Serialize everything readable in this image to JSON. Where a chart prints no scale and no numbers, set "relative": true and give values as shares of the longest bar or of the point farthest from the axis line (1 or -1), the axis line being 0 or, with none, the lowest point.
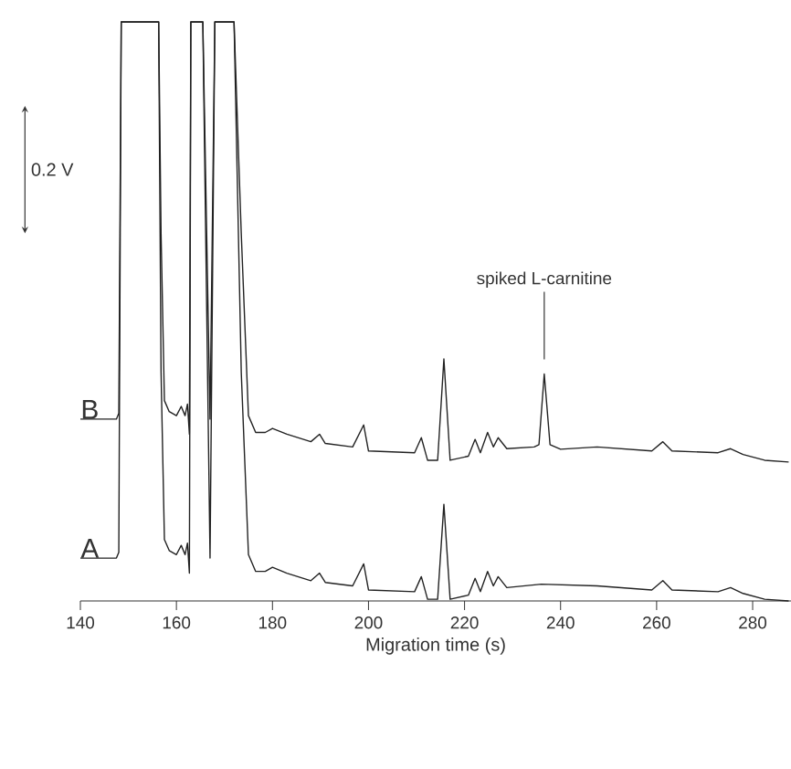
{
  "chart_data": {
    "type": "line",
    "relative": true,
    "xlabel": "Migration time (s)",
    "xlim": [
      140,
      288
    ],
    "xticks": [
      140,
      160,
      180,
      200,
      220,
      240,
      260,
      280
    ],
    "series": [
      {
        "name": "A",
        "color": "#222222",
        "x": [
          140,
          147.5,
          148,
          148.5,
          156.3,
          156.8,
          157.5,
          158.5,
          160,
          161,
          161.8,
          162.3,
          162.7,
          163,
          165.5,
          167,
          168,
          172,
          173.5,
          175,
          176.5,
          178.5,
          180,
          183,
          188,
          189.8,
          191,
          196.7,
          199,
          200,
          209.6,
          211,
          212.3,
          214.4,
          215.7,
          217,
          220.8,
          222.2,
          223.3,
          224.8,
          226,
          227,
          228.8,
          236,
          247.6,
          259,
          261.3,
          263.2,
          272.8,
          275.4,
          278,
          282.5,
          287.5
        ],
        "values": [
          0.074,
          0.074,
          0.084,
          1,
          1,
          0.395,
          0.106,
          0.087,
          0.08,
          0.096,
          0.08,
          0.1,
          0.048,
          1,
          1,
          0.074,
          1,
          1,
          0.395,
          0.08,
          0.051,
          0.051,
          0.058,
          0.048,
          0.035,
          0.048,
          0.032,
          0.026,
          0.064,
          0.019,
          0.016,
          0.042,
          0.003,
          0.003,
          0.167,
          0.003,
          0.01,
          0.039,
          0.016,
          0.051,
          0.026,
          0.042,
          0.023,
          0.029,
          0.026,
          0.019,
          0.035,
          0.019,
          0.016,
          0.023,
          0.013,
          0.003,
          0
        ]
      },
      {
        "name": "B",
        "color": "#222222",
        "x": [
          140,
          147.5,
          148,
          148.5,
          156.3,
          156.8,
          157.5,
          158.5,
          160,
          161,
          161.8,
          162.3,
          162.7,
          163,
          165.5,
          167,
          168,
          172,
          173.5,
          175,
          176.5,
          178.5,
          180,
          183,
          188,
          189.8,
          191,
          196.7,
          199,
          200,
          209.6,
          211,
          212.3,
          214.4,
          215.7,
          217,
          220.8,
          222.2,
          223.3,
          224.8,
          226,
          227,
          228.8,
          234.5,
          235.5,
          236.6,
          237.8,
          240,
          247.6,
          259,
          261.3,
          263.2,
          272.8,
          275.4,
          278,
          282.5,
          287.5
        ],
        "values": [
          0.314,
          0.314,
          0.324,
          1,
          1,
          0.635,
          0.346,
          0.327,
          0.32,
          0.336,
          0.32,
          0.34,
          0.288,
          1,
          1,
          0.314,
          1,
          1,
          0.635,
          0.32,
          0.291,
          0.291,
          0.298,
          0.288,
          0.275,
          0.288,
          0.272,
          0.266,
          0.304,
          0.259,
          0.256,
          0.282,
          0.243,
          0.243,
          0.418,
          0.243,
          0.25,
          0.279,
          0.256,
          0.291,
          0.266,
          0.282,
          0.263,
          0.266,
          0.27,
          0.392,
          0.27,
          0.262,
          0.266,
          0.259,
          0.275,
          0.259,
          0.256,
          0.263,
          0.253,
          0.243,
          0.24
        ]
      }
    ],
    "annotations": [
      "0.2 V",
      {
        "text": "spiked L-carnitine",
        "x": 236.6,
        "y": 0.392
      }
    ]
  }
}
